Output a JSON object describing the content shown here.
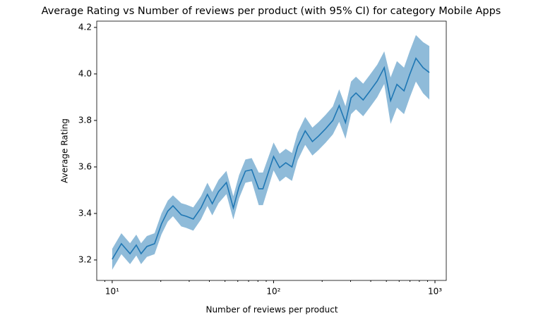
{
  "chart_data": {
    "type": "line",
    "title": "Average Rating vs Number of reviews per product (with 95% CI) for category Mobile Apps",
    "x_label": "Number of reviews per product",
    "y_label": "Average Rating",
    "log_x": true,
    "x": [
      10,
      11.4,
      12.9,
      14.1,
      15.1,
      16.4,
      18.3,
      20.2,
      22.1,
      23.8,
      26.8,
      28.7,
      31.8,
      35.5,
      38.9,
      41.7,
      45.6,
      51.0,
      56.3,
      61.1,
      66.9,
      73.2,
      80.9,
      85.9,
      100,
      109,
      119,
      130,
      141,
      157,
      174,
      190,
      210,
      233,
      255,
      279,
      302,
      324,
      359,
      393,
      439,
      485,
      531,
      581,
      643,
      697,
      762,
      844,
      923
    ],
    "series": [
      {
        "color": "#1f77b4",
        "values": [
          3.203,
          3.27,
          3.227,
          3.264,
          3.227,
          3.258,
          3.27,
          3.355,
          3.41,
          3.433,
          3.394,
          3.388,
          3.376,
          3.424,
          3.482,
          3.442,
          3.494,
          3.533,
          3.424,
          3.515,
          3.582,
          3.588,
          3.506,
          3.506,
          3.645,
          3.597,
          3.618,
          3.6,
          3.688,
          3.755,
          3.709,
          3.733,
          3.764,
          3.8,
          3.864,
          3.791,
          3.897,
          3.918,
          3.888,
          3.924,
          3.97,
          4.027,
          3.885,
          3.955,
          3.927,
          3.997,
          4.067,
          4.027,
          4.006
        ],
        "ci_lower": [
          3.158,
          3.225,
          3.182,
          3.219,
          3.182,
          3.213,
          3.225,
          3.31,
          3.365,
          3.388,
          3.344,
          3.338,
          3.326,
          3.374,
          3.432,
          3.392,
          3.444,
          3.483,
          3.374,
          3.465,
          3.532,
          3.538,
          3.436,
          3.436,
          3.585,
          3.537,
          3.558,
          3.54,
          3.628,
          3.695,
          3.649,
          3.673,
          3.704,
          3.74,
          3.794,
          3.721,
          3.827,
          3.848,
          3.818,
          3.854,
          3.9,
          3.957,
          3.785,
          3.855,
          3.827,
          3.897,
          3.967,
          3.917,
          3.89
        ],
        "ci_upper": [
          3.248,
          3.315,
          3.272,
          3.309,
          3.272,
          3.303,
          3.315,
          3.4,
          3.455,
          3.478,
          3.444,
          3.438,
          3.426,
          3.474,
          3.532,
          3.492,
          3.544,
          3.583,
          3.474,
          3.565,
          3.632,
          3.638,
          3.576,
          3.576,
          3.705,
          3.657,
          3.678,
          3.66,
          3.748,
          3.815,
          3.769,
          3.793,
          3.824,
          3.86,
          3.934,
          3.861,
          3.967,
          3.988,
          3.958,
          3.994,
          4.04,
          4.097,
          3.985,
          4.055,
          4.027,
          4.097,
          4.167,
          4.137,
          4.12
        ]
      }
    ],
    "xlim": [
      8.02,
      1175
    ],
    "ylim": [
      3.112,
      4.227
    ],
    "xticks": [
      {
        "value": 10,
        "label": "10¹"
      },
      {
        "value": 100,
        "label": "10²"
      },
      {
        "value": 1000,
        "label": "10³"
      }
    ],
    "xminorticks": [
      9,
      20,
      30,
      40,
      50,
      60,
      70,
      80,
      90,
      200,
      300,
      400,
      500,
      600,
      700,
      800,
      900
    ],
    "yticks": [
      3.2,
      3.4,
      3.6,
      3.8,
      {
        "value": 4,
        "label": "4.0"
      },
      4.2
    ]
  }
}
